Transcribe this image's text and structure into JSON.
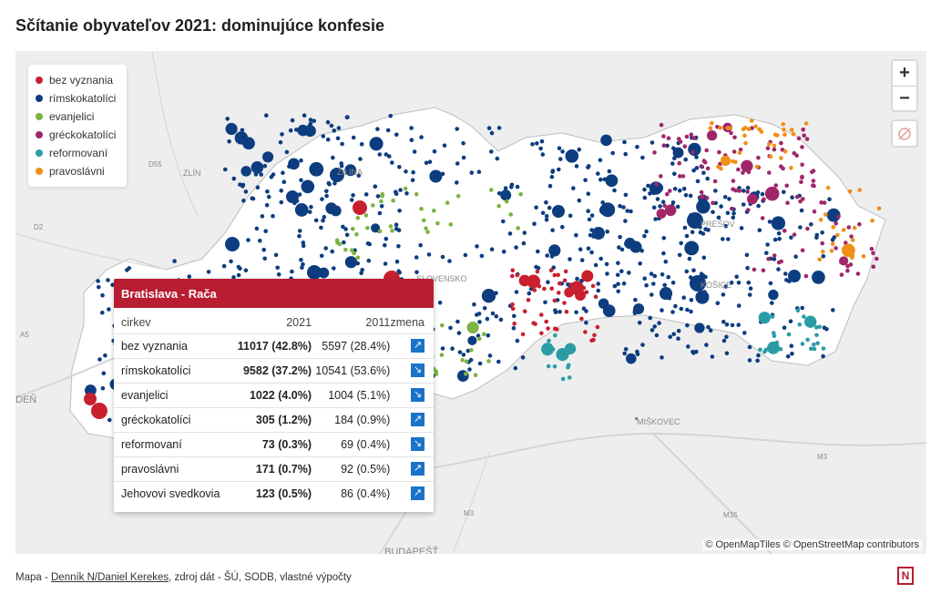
{
  "title": "Sčítanie obyvateľov 2021: dominujúce konfesie",
  "colors": {
    "bez_vyznania": "#c8202f",
    "rimskokatolici": "#0d3d7f",
    "evanjelici": "#7cb342",
    "greckokatolici": "#a0266a",
    "reformovani": "#2a9da4",
    "pravoslavni": "#ef8f15"
  },
  "legend": [
    {
      "label": "bez vyznania",
      "color": "#c8202f"
    },
    {
      "label": "rímskokatolíci",
      "color": "#0d3d7f"
    },
    {
      "label": "evanjelici",
      "color": "#7cb342"
    },
    {
      "label": "gréckokatolíci",
      "color": "#a0266a"
    },
    {
      "label": "reformovaní",
      "color": "#2a9da4"
    },
    {
      "label": "pravoslávni",
      "color": "#ef8f15"
    }
  ],
  "controls": {
    "zoom_in": "+",
    "zoom_out": "−",
    "locate_icon": "compass-off-icon"
  },
  "place_labels": {
    "zlin": "ZLÍN",
    "zilina": "ŽILINA",
    "slovensko": "SLOVENSKO",
    "presov": "PREŠOV",
    "kosice": "KOŠICE",
    "miskovec": "MIŠKOVEC",
    "budapest": "BUDAPEŠŤ",
    "viden": "DEŇ"
  },
  "road_labels": {
    "d55": "D55",
    "d2": "D2",
    "a5": "A5",
    "m3a": "M3",
    "m3b": "M3",
    "m35": "M35"
  },
  "popup": {
    "title": "Bratislava - Rača",
    "headers": {
      "church": "cirkev",
      "y2021": "2021",
      "y2011": "2011",
      "change": "zmena"
    },
    "rows": [
      {
        "church": "bez vyznania",
        "v2021": "11017 (42.8%)",
        "v2011": "5597 (28.4%)",
        "trend": "up"
      },
      {
        "church": "rímskokatolíci",
        "v2021": "9582 (37.2%)",
        "v2011": "10541 (53.6%)",
        "trend": "down"
      },
      {
        "church": "evanjelici",
        "v2021": "1022 (4.0%)",
        "v2011": "1004 (5.1%)",
        "trend": "down"
      },
      {
        "church": "gréckokatolíci",
        "v2021": "305 (1.2%)",
        "v2011": "184 (0.9%)",
        "trend": "up"
      },
      {
        "church": "reformovaní",
        "v2021": "73 (0.3%)",
        "v2011": "69 (0.4%)",
        "trend": "down"
      },
      {
        "church": "pravoslávni",
        "v2021": "171 (0.7%)",
        "v2011": "92 (0.5%)",
        "trend": "up"
      },
      {
        "church": "Jehovovi svedkovia",
        "v2021": "123 (0.5%)",
        "v2011": "86 (0.4%)",
        "trend": "up"
      }
    ]
  },
  "attribution": "© OpenMapTiles © OpenStreetMap contributors",
  "footer": {
    "prefix": "Mapa - ",
    "author": "Denník N/Daniel Kerekes",
    "suffix": ", zdroj dát - ŠÚ, SODB, vlastné výpočty"
  },
  "logo": "N"
}
